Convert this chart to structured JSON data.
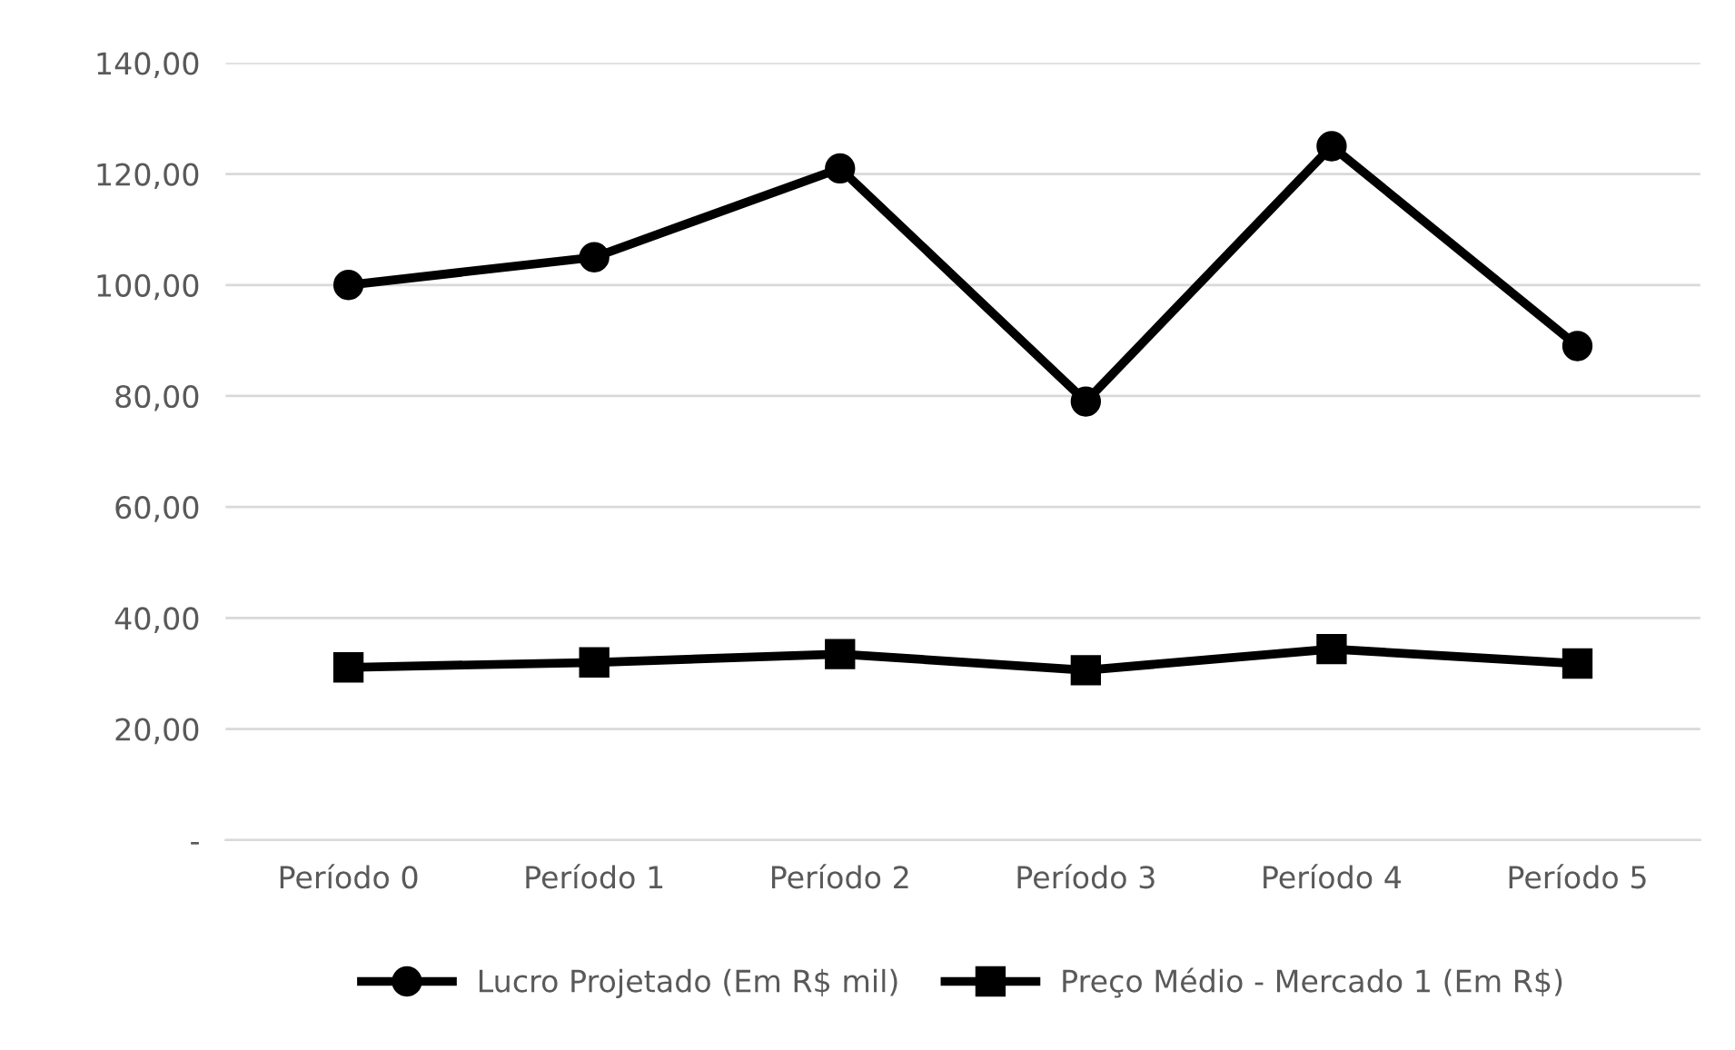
{
  "chart_data": {
    "type": "line",
    "categories": [
      "Período 0",
      "Período 1",
      "Período 2",
      "Período 3",
      "Período 4",
      "Período 5"
    ],
    "series": [
      {
        "name": "Lucro Projetado (Em R$ mil)",
        "color": "#000000",
        "marker": "circle",
        "values": [
          100,
          105,
          121,
          79,
          125,
          89
        ]
      },
      {
        "name": "Preço Médio - Mercado 1 (Em R$)",
        "color": "#000000",
        "marker": "square",
        "values": [
          31.1,
          32,
          33.5,
          30.6,
          34.4,
          31.8
        ]
      }
    ],
    "ylim": [
      0,
      140
    ],
    "yticks": [
      {
        "value": 0,
        "label": "-"
      },
      {
        "value": 20,
        "label": "20,00"
      },
      {
        "value": 40,
        "label": "40,00"
      },
      {
        "value": 60,
        "label": "60,00"
      },
      {
        "value": 80,
        "label": "80,00"
      },
      {
        "value": 100,
        "label": "100,00"
      },
      {
        "value": 120,
        "label": "120,00"
      },
      {
        "value": 140,
        "label": "140,00"
      }
    ],
    "grid": "y",
    "legend": "bottom",
    "line_style": "solid"
  }
}
